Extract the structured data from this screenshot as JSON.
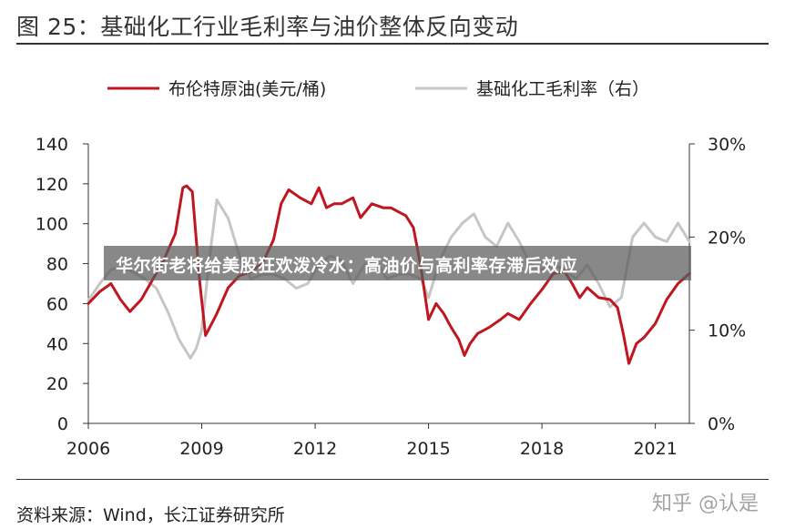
{
  "header": {
    "title": "图 25：基础化工行业毛利率与油价整体反向变动"
  },
  "banner": {
    "text": "华尔街老将给美股狂欢泼冷水：高油价与高利率存滞后效应"
  },
  "footer": {
    "source": "资料来源：Wind，长江证券研究所",
    "watermark": "知乎 @认是"
  },
  "chart_data": {
    "type": "line",
    "title": "图 25：基础化工行业毛利率与油价整体反向变动",
    "xlabel": "",
    "xlim": [
      2006.0,
      2021.9
    ],
    "x_ticks": [
      2006,
      2009,
      2012,
      2015,
      2018,
      2021
    ],
    "x_tick_labels": [
      "2006",
      "2009",
      "2012",
      "2015",
      "2018",
      "2021"
    ],
    "y_left": {
      "label": "",
      "lim": [
        0,
        140
      ],
      "ticks": [
        0,
        20,
        40,
        60,
        80,
        100,
        120,
        140
      ],
      "tick_labels": [
        "0",
        "20",
        "40",
        "60",
        "80",
        "100",
        "120",
        "140"
      ]
    },
    "y_right": {
      "label": "",
      "lim": [
        0,
        30
      ],
      "ticks": [
        0,
        10,
        20,
        30
      ],
      "tick_labels": [
        "0%",
        "10%",
        "20%",
        "30%"
      ],
      "unit": "%"
    },
    "grid": false,
    "legend_position": "top",
    "colors": {
      "oil": "#c0161f",
      "margin": "#c6c6c6"
    },
    "series": [
      {
        "name": "布伦特原油(美元/桶)",
        "axis": "left",
        "x": [
          2006.0,
          2006.3,
          2006.6,
          2006.85,
          2007.1,
          2007.4,
          2007.7,
          2008.0,
          2008.3,
          2008.5,
          2008.6,
          2008.75,
          2008.95,
          2009.1,
          2009.4,
          2009.7,
          2010.0,
          2010.3,
          2010.6,
          2010.9,
          2011.1,
          2011.3,
          2011.6,
          2011.9,
          2012.1,
          2012.3,
          2012.5,
          2012.7,
          2013.0,
          2013.2,
          2013.5,
          2013.8,
          2014.0,
          2014.2,
          2014.4,
          2014.6,
          2014.8,
          2015.0,
          2015.2,
          2015.4,
          2015.6,
          2015.8,
          2015.95,
          2016.1,
          2016.3,
          2016.6,
          2016.9,
          2017.1,
          2017.4,
          2017.7,
          2018.0,
          2018.3,
          2018.6,
          2018.8,
          2019.0,
          2019.2,
          2019.5,
          2019.8,
          2020.0,
          2020.15,
          2020.3,
          2020.5,
          2020.7,
          2021.0,
          2021.3,
          2021.6,
          2021.9
        ],
        "values": [
          60,
          66,
          70,
          62,
          56,
          62,
          72,
          82,
          95,
          118,
          119,
          116,
          70,
          44,
          55,
          68,
          74,
          76,
          80,
          92,
          110,
          117,
          113,
          110,
          118,
          108,
          110,
          110,
          113,
          103,
          110,
          108,
          108,
          106,
          104,
          98,
          78,
          52,
          60,
          55,
          48,
          42,
          34,
          40,
          45,
          48,
          52,
          55,
          52,
          60,
          67,
          75,
          76,
          70,
          63,
          68,
          63,
          62,
          58,
          45,
          30,
          40,
          43,
          50,
          62,
          70,
          75
        ]
      },
      {
        "name": "基础化工毛利率（右）",
        "axis": "right",
        "x": [
          2006.0,
          2006.3,
          2006.6,
          2006.9,
          2007.2,
          2007.5,
          2007.8,
          2008.1,
          2008.4,
          2008.7,
          2008.85,
          2009.0,
          2009.2,
          2009.4,
          2009.7,
          2010.0,
          2010.3,
          2010.6,
          2010.9,
          2011.2,
          2011.5,
          2011.8,
          2012.1,
          2012.4,
          2012.7,
          2013.0,
          2013.3,
          2013.6,
          2013.9,
          2014.2,
          2014.5,
          2014.8,
          2015.0,
          2015.3,
          2015.6,
          2015.9,
          2016.2,
          2016.5,
          2016.8,
          2017.1,
          2017.4,
          2017.7,
          2018.0,
          2018.3,
          2018.6,
          2018.9,
          2019.2,
          2019.5,
          2019.8,
          2020.1,
          2020.4,
          2020.7,
          2021.0,
          2021.3,
          2021.6,
          2021.9
        ],
        "values": [
          13.2,
          15.0,
          16.5,
          16.8,
          16.2,
          15.5,
          14.5,
          12.0,
          9.0,
          7.0,
          8.0,
          10.0,
          17.5,
          24.0,
          22.0,
          18.0,
          15.5,
          16.0,
          16.0,
          15.5,
          14.5,
          15.0,
          17.0,
          18.0,
          17.5,
          15.0,
          17.0,
          17.5,
          15.5,
          16.0,
          16.0,
          15.5,
          13.5,
          17.5,
          20.0,
          21.5,
          22.5,
          20.0,
          19.0,
          21.5,
          19.5,
          17.0,
          16.5,
          17.0,
          16.5,
          15.5,
          17.0,
          15.0,
          12.5,
          13.5,
          20.0,
          21.5,
          20.0,
          19.5,
          21.5,
          19.5
        ]
      }
    ]
  }
}
